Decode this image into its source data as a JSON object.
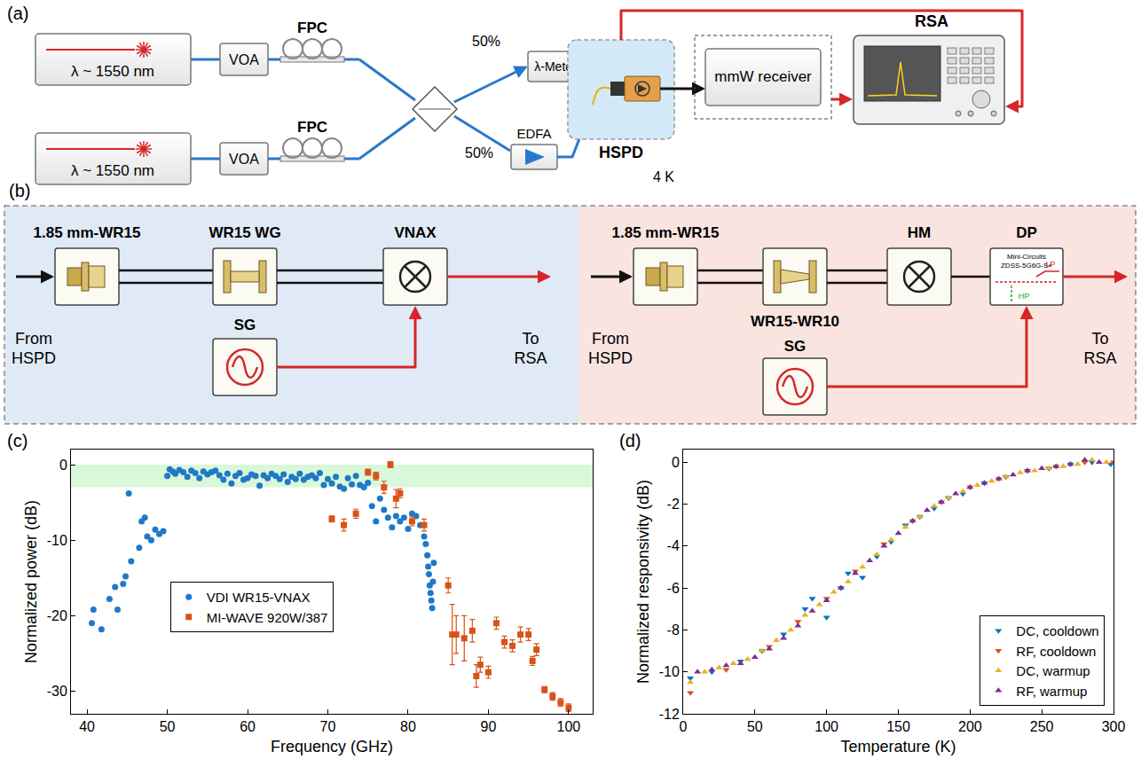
{
  "diagram_a": {
    "label": "(a)",
    "lasers": [
      "λ ~ 1550 nm",
      "λ ~ 1550 nm"
    ],
    "attenuators": [
      "VOA",
      "VOA"
    ],
    "controllers": [
      "FPC",
      "FPC"
    ],
    "splits": [
      "50%",
      "50%"
    ],
    "wavemeter": "λ-Meter",
    "amplifier": "EDFA",
    "detector": "HSPD",
    "temperature": "4 K",
    "receiver": "mmW receiver",
    "analyzer": "RSA"
  },
  "diagram_b": {
    "label": "(b)",
    "left": {
      "input": "From HSPD",
      "output": "To RSA",
      "blocks": [
        "1.85 mm-WR15",
        "WR15 WG",
        "VNAX"
      ],
      "source": "SG"
    },
    "right": {
      "input": "From HSPD",
      "output": "To RSA",
      "blocks": [
        "1.85 mm-WR15",
        "WR15-WR10",
        "HM",
        "DP"
      ],
      "source": "SG",
      "diplexer_text": [
        "Mini-Circuits",
        "ZDSS-5G6G-S+"
      ],
      "ports": [
        "LP",
        "HP"
      ]
    }
  },
  "chart_data": [
    {
      "type": "scatter",
      "label": "(c)",
      "x_label": "Frequency (GHz)",
      "y_label": "Normalized power (dB)",
      "xlim": [
        38,
        103
      ],
      "ylim": [
        -33,
        2
      ],
      "xticks": [
        40,
        50,
        60,
        70,
        80,
        90,
        100
      ],
      "yticks": [
        0,
        -10,
        -20,
        -30
      ],
      "grid": false,
      "legend": "lower left",
      "highlight_band": {
        "ylim": [
          -3,
          0
        ],
        "color": "#d9f7d9"
      },
      "series": [
        {
          "name": "VDI WR15-VNAX",
          "color": "#1f78c8",
          "marker": "circle",
          "x": [
            40.6,
            40.8,
            41.8,
            42.8,
            43.5,
            43.8,
            44.5,
            44.8,
            45.2,
            45.5,
            46.5,
            46.8,
            47.2,
            47.5,
            48.0,
            48.5,
            49.0,
            49.5,
            50.0,
            50.3,
            50.7,
            51.0,
            51.5,
            52.0,
            52.5,
            53.0,
            53.5,
            54.0,
            54.5,
            55.0,
            55.5,
            56.0,
            56.5,
            57.0,
            57.5,
            58.0,
            58.5,
            59.0,
            59.5,
            60.0,
            60.5,
            61.0,
            61.5,
            62.0,
            62.5,
            63.0,
            63.5,
            64.0,
            64.5,
            65.0,
            65.5,
            66.0,
            66.5,
            67.0,
            67.5,
            68.0,
            68.5,
            69.0,
            69.5,
            70.0,
            70.5,
            71.0,
            71.5,
            72.0,
            72.5,
            73.0,
            73.5,
            74.0,
            74.5,
            75.0,
            75.5,
            76.0,
            76.5,
            77.0,
            77.5,
            78.0,
            78.5,
            79.0,
            79.5,
            80.0,
            80.5,
            81.0,
            81.5,
            82.0,
            82.2,
            82.4,
            82.5,
            82.6,
            82.7,
            82.8,
            82.9,
            83.0,
            83.1,
            83.2
          ],
          "values": [
            -21.0,
            -19.2,
            -21.8,
            -17.8,
            -16.2,
            -19.2,
            -15.8,
            -14.8,
            -3.8,
            -12.8,
            -11.0,
            -7.5,
            -7.0,
            -9.5,
            -10.0,
            -8.6,
            -9.2,
            -8.8,
            -1.5,
            -0.6,
            -0.9,
            -1.2,
            -0.7,
            -1.0,
            -1.6,
            -0.8,
            -1.1,
            -1.8,
            -0.9,
            -1.3,
            -1.0,
            -0.8,
            -1.4,
            -2.0,
            -1.2,
            -2.5,
            -1.5,
            -1.1,
            -2.0,
            -1.8,
            -1.3,
            -1.5,
            -2.8,
            -1.4,
            -1.8,
            -1.2,
            -1.5,
            -1.9,
            -1.3,
            -2.3,
            -1.6,
            -1.9,
            -1.2,
            -2.0,
            -1.6,
            -1.4,
            -1.8,
            -1.1,
            -2.7,
            -1.9,
            -2.5,
            -1.6,
            -2.9,
            -3.2,
            -1.8,
            -2.6,
            -1.5,
            -2.7,
            -3.0,
            -2.4,
            -5.5,
            -7.5,
            -4.5,
            -6.0,
            -7.0,
            -8.3,
            -6.8,
            -7.5,
            -7.0,
            -8.5,
            -6.5,
            -6.8,
            -8.0,
            -9.5,
            -10.5,
            -12.0,
            -13.5,
            -14.5,
            -16.0,
            -17.0,
            -18.0,
            -19.0,
            -15.5,
            -13.0
          ]
        },
        {
          "name": "MI-WAVE 920W/387",
          "color": "#d95319",
          "marker": "square",
          "x": [
            70.5,
            72.0,
            73.5,
            75.0,
            76.0,
            77.0,
            77.8,
            78.5,
            79.0,
            80.5,
            82.0,
            85.0,
            85.5,
            86.0,
            87.0,
            88.0,
            88.5,
            89.0,
            90.0,
            91.0,
            92.0,
            93.0,
            94.0,
            95.0,
            95.5,
            96.0,
            97.0,
            98.0,
            99.0,
            100.0
          ],
          "values": [
            -7.2,
            -8.0,
            -6.5,
            -1.0,
            -1.5,
            -3.0,
            0.0,
            -4.5,
            -3.8,
            -7.5,
            -8.0,
            -16.0,
            -22.5,
            -22.5,
            -23.0,
            -22.0,
            -28.0,
            -26.5,
            -27.5,
            -21.0,
            -23.5,
            -24.0,
            -22.5,
            -22.5,
            -26.0,
            -24.5,
            -29.8,
            -30.7,
            -31.5,
            -32.2
          ],
          "errors": [
            0.4,
            0.8,
            0.6,
            0.4,
            0.5,
            0.8,
            0.4,
            1.2,
            0.6,
            0.6,
            0.8,
            1.0,
            4.0,
            2.5,
            3.0,
            1.5,
            1.5,
            1.0,
            0.8,
            0.8,
            0.8,
            0.8,
            1.0,
            0.8,
            0.6,
            0.8,
            0.4,
            0.5,
            0.5,
            0.5
          ]
        }
      ]
    },
    {
      "type": "scatter",
      "label": "(d)",
      "x_label": "Temperature (K)",
      "y_label": "Normalized responsivity (dB)",
      "xlim": [
        0,
        300
      ],
      "ylim": [
        -12,
        0.6
      ],
      "xticks": [
        0,
        50,
        100,
        150,
        200,
        250,
        300
      ],
      "yticks": [
        0,
        -2,
        -4,
        -6,
        -8,
        -10,
        -12
      ],
      "grid": false,
      "legend": "lower right",
      "series": [
        {
          "name": "DC, cooldown",
          "color": "#0072bd",
          "marker": "triangle-down",
          "x": [
            5,
            20,
            40,
            55,
            70,
            85,
            90,
            100,
            110,
            115,
            125,
            135,
            145,
            155,
            165,
            175,
            185,
            195,
            210,
            225,
            240,
            255,
            270,
            285,
            298
          ],
          "values": [
            -10.3,
            -10.0,
            -9.5,
            -9.0,
            -8.2,
            -7.0,
            -6.5,
            -7.4,
            -6.0,
            -5.3,
            -5.5,
            -4.5,
            -3.8,
            -3.0,
            -2.6,
            -2.2,
            -1.7,
            -1.5,
            -1.0,
            -0.7,
            -0.4,
            -0.3,
            -0.1,
            0.0,
            -0.1
          ]
        },
        {
          "name": "RF, cooldown",
          "color": "#d95319",
          "marker": "triangle-down",
          "x": [
            5,
            30,
            60,
            80,
            100,
            120,
            140,
            160,
            180,
            200,
            220,
            240,
            260,
            280,
            300
          ],
          "values": [
            -11.0,
            -9.9,
            -8.8,
            -7.6,
            -6.5,
            -5.2,
            -3.9,
            -2.8,
            -1.9,
            -1.2,
            -0.8,
            -0.4,
            -0.2,
            0.0,
            0.0
          ]
        },
        {
          "name": "DC, warmup",
          "color": "#edb120",
          "marker": "triangle-up",
          "x": [
            5,
            15,
            25,
            35,
            45,
            55,
            65,
            75,
            85,
            95,
            105,
            115,
            125,
            135,
            145,
            155,
            165,
            175,
            185,
            195,
            205,
            215,
            225,
            235,
            245,
            255,
            265,
            275,
            285,
            295
          ],
          "values": [
            -10.5,
            -10.0,
            -9.8,
            -9.6,
            -9.4,
            -9.0,
            -8.5,
            -8.0,
            -7.3,
            -6.8,
            -6.2,
            -5.7,
            -5.0,
            -4.4,
            -3.7,
            -3.1,
            -2.6,
            -2.1,
            -1.7,
            -1.4,
            -1.1,
            -0.9,
            -0.7,
            -0.5,
            -0.4,
            -0.3,
            -0.2,
            -0.1,
            0.1,
            0.0
          ]
        },
        {
          "name": "RF, warmup",
          "color": "#7e2f8e",
          "marker": "triangle-up",
          "x": [
            10,
            20,
            30,
            40,
            50,
            60,
            70,
            80,
            90,
            100,
            110,
            120,
            130,
            140,
            150,
            160,
            170,
            180,
            190,
            200,
            210,
            220,
            230,
            240,
            250,
            260,
            270,
            280,
            290
          ],
          "values": [
            -10.0,
            -9.9,
            -9.7,
            -9.6,
            -9.3,
            -8.9,
            -8.4,
            -7.8,
            -7.1,
            -6.6,
            -6.0,
            -5.3,
            -4.7,
            -4.0,
            -3.4,
            -2.8,
            -2.3,
            -1.9,
            -1.5,
            -1.2,
            -1.0,
            -0.8,
            -0.6,
            -0.4,
            -0.3,
            -0.2,
            -0.1,
            0.1,
            0.0
          ]
        }
      ]
    }
  ]
}
